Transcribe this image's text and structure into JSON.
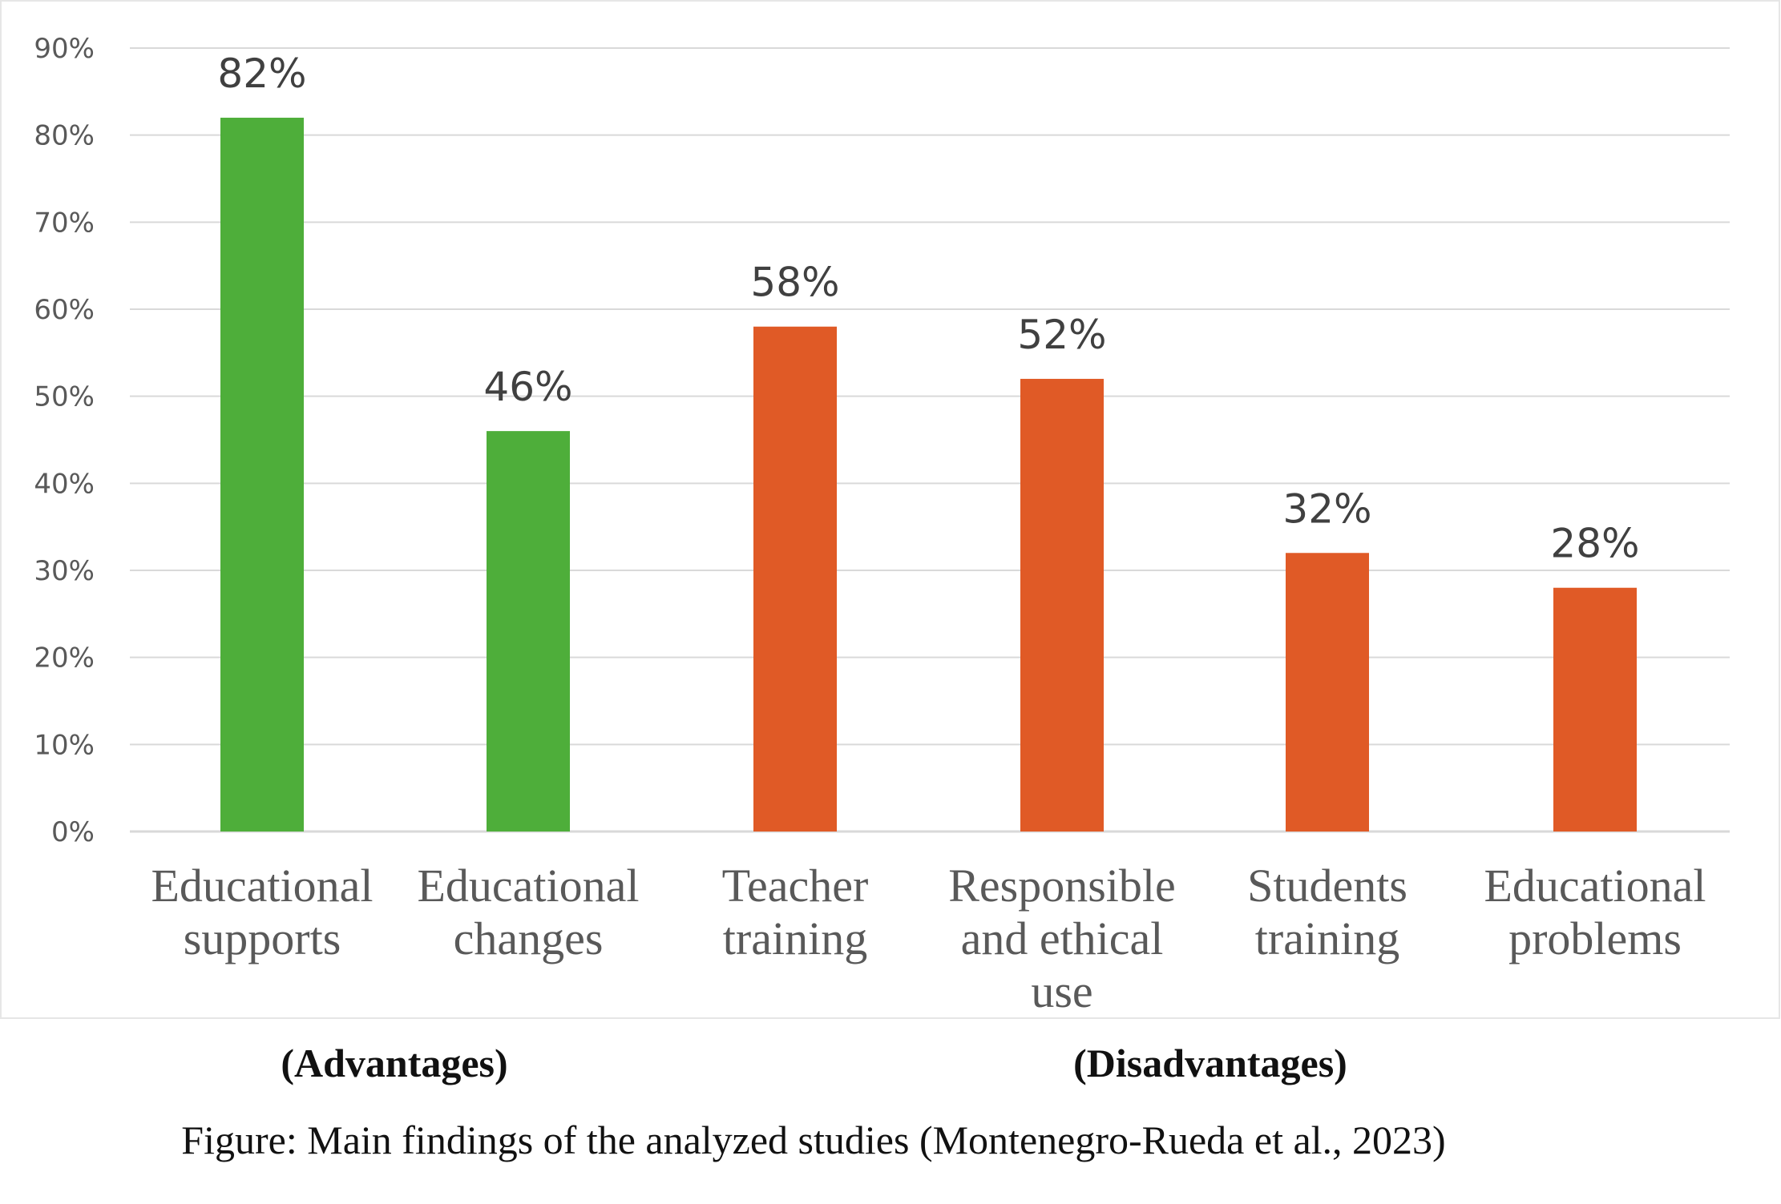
{
  "chart_data": {
    "type": "bar",
    "categories": [
      [
        "Educational",
        "supports"
      ],
      [
        "Educational",
        "changes"
      ],
      [
        "Teacher",
        "training"
      ],
      [
        "Responsible",
        "and ethical",
        "use"
      ],
      [
        "Students",
        "training"
      ],
      [
        "Educational",
        "problems"
      ]
    ],
    "values": [
      82,
      46,
      58,
      52,
      32,
      28
    ],
    "data_labels": [
      "82%",
      "46%",
      "58%",
      "52%",
      "32%",
      "28%"
    ],
    "bar_colors": [
      "#4eae3a",
      "#4eae3a",
      "#e05a26",
      "#e05a26",
      "#e05a26",
      "#e05a26"
    ],
    "ylim": [
      0,
      90
    ],
    "yticks": [
      0,
      10,
      20,
      30,
      40,
      50,
      60,
      70,
      80,
      90
    ],
    "ytick_labels": [
      "0%",
      "10%",
      "20%",
      "30%",
      "40%",
      "50%",
      "60%",
      "70%",
      "80%",
      "90%"
    ],
    "grid": true,
    "groups": [
      {
        "label": "(Advantages)",
        "categories": [
          0,
          1
        ]
      },
      {
        "label": "(Disadvantages)",
        "categories": [
          2,
          3,
          4,
          5
        ]
      }
    ],
    "title": "",
    "xlabel": "",
    "ylabel": ""
  },
  "caption": "Figure:  Main findings of the analyzed studies (Montenegro-Rueda et al., 2023)",
  "colors": {
    "advantage": "#4eae3a",
    "disadvantage": "#e05a26",
    "gridline": "#d9d9d9"
  }
}
